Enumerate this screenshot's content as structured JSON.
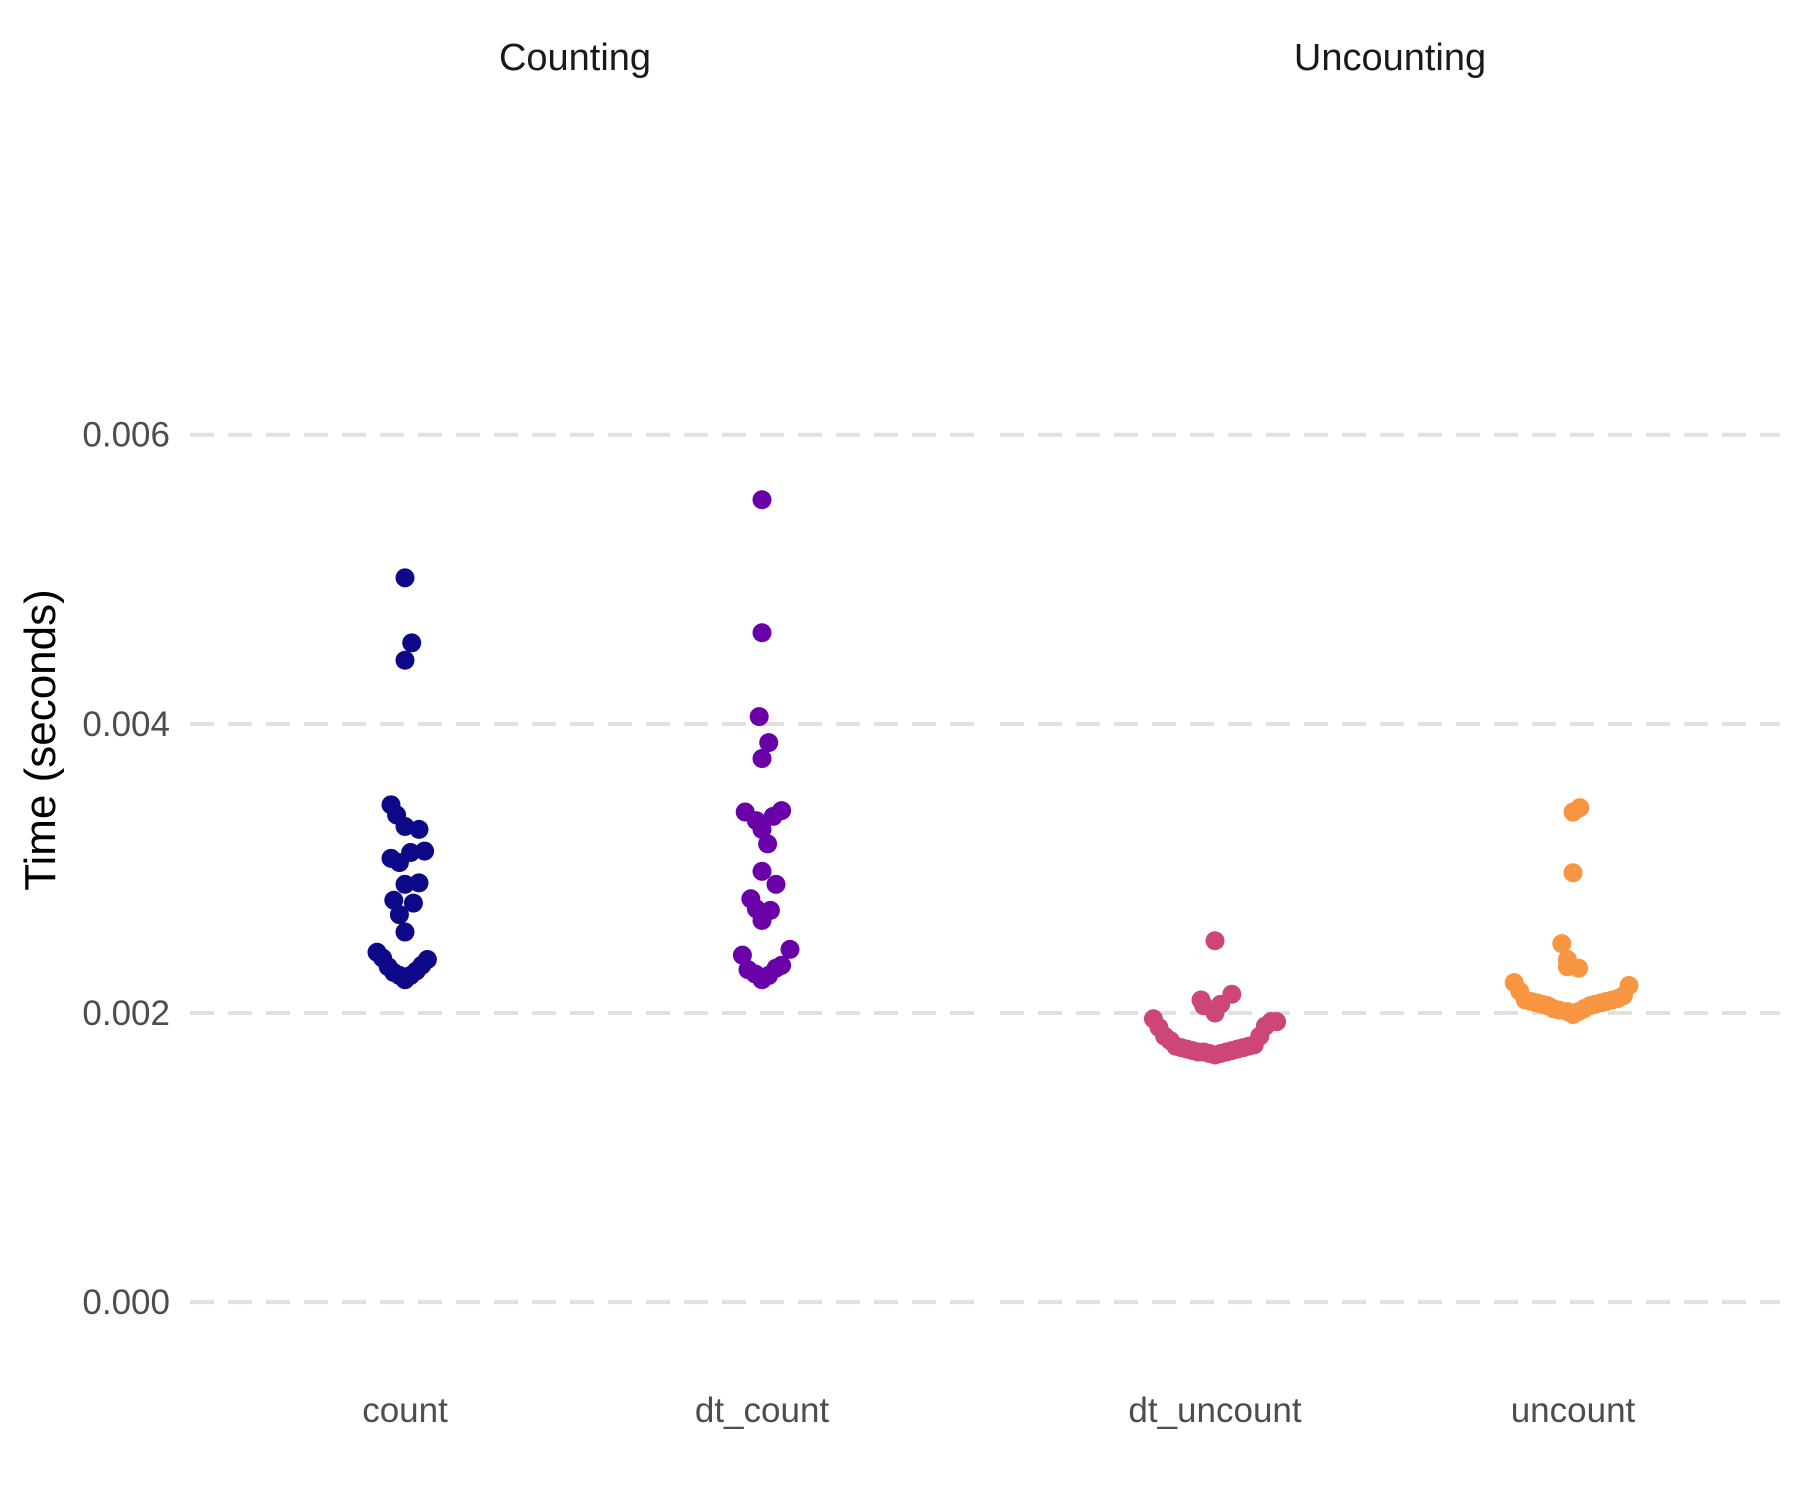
{
  "chart_data": {
    "type": "scatter",
    "title": "",
    "xlabel": "",
    "ylabel": "Time (seconds)",
    "ylim": [
      -0.0004,
      0.0079
    ],
    "yticks": [
      0.0,
      0.002,
      0.004,
      0.006
    ],
    "ytick_labels": [
      "0.000",
      "0.002",
      "0.004",
      "0.006"
    ],
    "grid": "horizontal dashed major lines",
    "legend": "none",
    "facets": [
      {
        "title": "Counting",
        "categories": [
          "count",
          "dt_count"
        ],
        "series": [
          {
            "category": "count",
            "color": "#0d0887",
            "points": [
              {
                "offset": -0.5,
                "y": 0.00242
              },
              {
                "offset": -0.4,
                "y": 0.00238
              },
              {
                "offset": -0.3,
                "y": 0.00232
              },
              {
                "offset": -0.2,
                "y": 0.00228
              },
              {
                "offset": -0.1,
                "y": 0.00226
              },
              {
                "offset": 0.0,
                "y": 0.00223
              },
              {
                "offset": 0.1,
                "y": 0.00226
              },
              {
                "offset": 0.2,
                "y": 0.00229
              },
              {
                "offset": 0.3,
                "y": 0.00233
              },
              {
                "offset": 0.4,
                "y": 0.00237
              },
              {
                "offset": 0.0,
                "y": 0.00256
              },
              {
                "offset": -0.1,
                "y": 0.00268
              },
              {
                "offset": -0.2,
                "y": 0.00278
              },
              {
                "offset": 0.15,
                "y": 0.00276
              },
              {
                "offset": 0.0,
                "y": 0.00289
              },
              {
                "offset": 0.25,
                "y": 0.0029
              },
              {
                "offset": -0.25,
                "y": 0.00307
              },
              {
                "offset": -0.1,
                "y": 0.00304
              },
              {
                "offset": 0.1,
                "y": 0.00311
              },
              {
                "offset": 0.35,
                "y": 0.00312
              },
              {
                "offset": 0.0,
                "y": 0.00329
              },
              {
                "offset": 0.25,
                "y": 0.00327
              },
              {
                "offset": -0.15,
                "y": 0.00337
              },
              {
                "offset": -0.25,
                "y": 0.00344
              },
              {
                "offset": 0.0,
                "y": 0.00444
              },
              {
                "offset": 0.12,
                "y": 0.00456
              },
              {
                "offset": 0.0,
                "y": 0.00501
              }
            ]
          },
          {
            "category": "dt_count",
            "color": "#6a00a8",
            "points": [
              {
                "offset": -0.35,
                "y": 0.0024
              },
              {
                "offset": -0.25,
                "y": 0.0023
              },
              {
                "offset": -0.12,
                "y": 0.00227
              },
              {
                "offset": 0.0,
                "y": 0.00223
              },
              {
                "offset": 0.12,
                "y": 0.00226
              },
              {
                "offset": 0.25,
                "y": 0.00231
              },
              {
                "offset": 0.35,
                "y": 0.00233
              },
              {
                "offset": 0.5,
                "y": 0.00244
              },
              {
                "offset": 0.0,
                "y": 0.00264
              },
              {
                "offset": -0.1,
                "y": 0.00272
              },
              {
                "offset": 0.15,
                "y": 0.00271
              },
              {
                "offset": -0.2,
                "y": 0.00279
              },
              {
                "offset": 0.25,
                "y": 0.00289
              },
              {
                "offset": 0.0,
                "y": 0.00298
              },
              {
                "offset": 0.1,
                "y": 0.00317
              },
              {
                "offset": 0.0,
                "y": 0.00327
              },
              {
                "offset": -0.1,
                "y": 0.00333
              },
              {
                "offset": -0.3,
                "y": 0.00339
              },
              {
                "offset": 0.2,
                "y": 0.00336
              },
              {
                "offset": 0.35,
                "y": 0.0034
              },
              {
                "offset": 0.0,
                "y": 0.00376
              },
              {
                "offset": 0.12,
                "y": 0.00387
              },
              {
                "offset": -0.05,
                "y": 0.00405
              },
              {
                "offset": 0.0,
                "y": 0.00463
              },
              {
                "offset": 0.0,
                "y": 0.00555
              }
            ]
          }
        ]
      },
      {
        "title": "Uncounting",
        "categories": [
          "dt_uncount",
          "uncount"
        ],
        "series": [
          {
            "category": "dt_uncount",
            "color": "#cc4778",
            "points": [
              {
                "offset": -1.1,
                "y": 0.00196
              },
              {
                "offset": -1.0,
                "y": 0.0019
              },
              {
                "offset": -0.9,
                "y": 0.00184
              },
              {
                "offset": -0.8,
                "y": 0.00181
              },
              {
                "offset": -0.7,
                "y": 0.00177
              },
              {
                "offset": -0.6,
                "y": 0.00176
              },
              {
                "offset": -0.5,
                "y": 0.00175
              },
              {
                "offset": -0.4,
                "y": 0.00174
              },
              {
                "offset": -0.3,
                "y": 0.00173
              },
              {
                "offset": -0.2,
                "y": 0.00173
              },
              {
                "offset": -0.1,
                "y": 0.00172
              },
              {
                "offset": 0.0,
                "y": 0.00171
              },
              {
                "offset": 0.1,
                "y": 0.00172
              },
              {
                "offset": 0.2,
                "y": 0.00173
              },
              {
                "offset": 0.3,
                "y": 0.00174
              },
              {
                "offset": 0.4,
                "y": 0.00175
              },
              {
                "offset": 0.5,
                "y": 0.00176
              },
              {
                "offset": 0.6,
                "y": 0.00177
              },
              {
                "offset": 0.7,
                "y": 0.00178
              },
              {
                "offset": 0.8,
                "y": 0.00184
              },
              {
                "offset": 0.9,
                "y": 0.00191
              },
              {
                "offset": 1.0,
                "y": 0.00194
              },
              {
                "offset": 1.1,
                "y": 0.00194
              },
              {
                "offset": -0.2,
                "y": 0.00205
              },
              {
                "offset": 0.0,
                "y": 0.002
              },
              {
                "offset": 0.1,
                "y": 0.00206
              },
              {
                "offset": -0.25,
                "y": 0.00209
              },
              {
                "offset": 0.3,
                "y": 0.00213
              },
              {
                "offset": 0.0,
                "y": 0.0025
              }
            ]
          },
          {
            "category": "uncount",
            "color": "#f89540",
            "points": [
              {
                "offset": -1.05,
                "y": 0.00221
              },
              {
                "offset": -0.95,
                "y": 0.00215
              },
              {
                "offset": -0.85,
                "y": 0.00209
              },
              {
                "offset": -0.75,
                "y": 0.00208
              },
              {
                "offset": -0.65,
                "y": 0.00207
              },
              {
                "offset": -0.55,
                "y": 0.00206
              },
              {
                "offset": -0.45,
                "y": 0.00205
              },
              {
                "offset": -0.35,
                "y": 0.00203
              },
              {
                "offset": -0.25,
                "y": 0.00202
              },
              {
                "offset": -0.1,
                "y": 0.00201
              },
              {
                "offset": 0.0,
                "y": 0.00199
              },
              {
                "offset": 0.1,
                "y": 0.00201
              },
              {
                "offset": 0.2,
                "y": 0.00203
              },
              {
                "offset": 0.3,
                "y": 0.00205
              },
              {
                "offset": 0.4,
                "y": 0.00206
              },
              {
                "offset": 0.5,
                "y": 0.00207
              },
              {
                "offset": 0.6,
                "y": 0.00208
              },
              {
                "offset": 0.7,
                "y": 0.00209
              },
              {
                "offset": 0.8,
                "y": 0.0021
              },
              {
                "offset": 0.9,
                "y": 0.00212
              },
              {
                "offset": 1.0,
                "y": 0.00219
              },
              {
                "offset": -0.1,
                "y": 0.00232
              },
              {
                "offset": 0.1,
                "y": 0.00231
              },
              {
                "offset": -0.1,
                "y": 0.00237
              },
              {
                "offset": -0.2,
                "y": 0.00248
              },
              {
                "offset": 0.0,
                "y": 0.00297
              },
              {
                "offset": 0.0,
                "y": 0.00339
              },
              {
                "offset": 0.12,
                "y": 0.00342
              }
            ]
          }
        ]
      }
    ]
  }
}
